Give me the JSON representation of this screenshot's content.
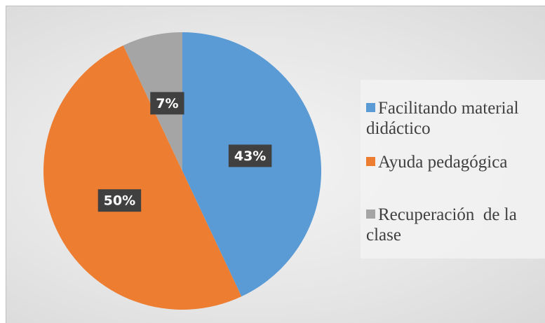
{
  "chart_data": {
    "type": "pie",
    "categories": [
      "Facilitando material didáctico",
      "Ayuda pedagógica",
      "Recuperación  de la clase"
    ],
    "values": [
      43,
      50,
      7
    ],
    "value_labels": [
      "43%",
      "50%",
      "7%"
    ],
    "colors": [
      "#5b9bd5",
      "#ed7d31",
      "#a5a5a5"
    ],
    "legend": "right"
  }
}
